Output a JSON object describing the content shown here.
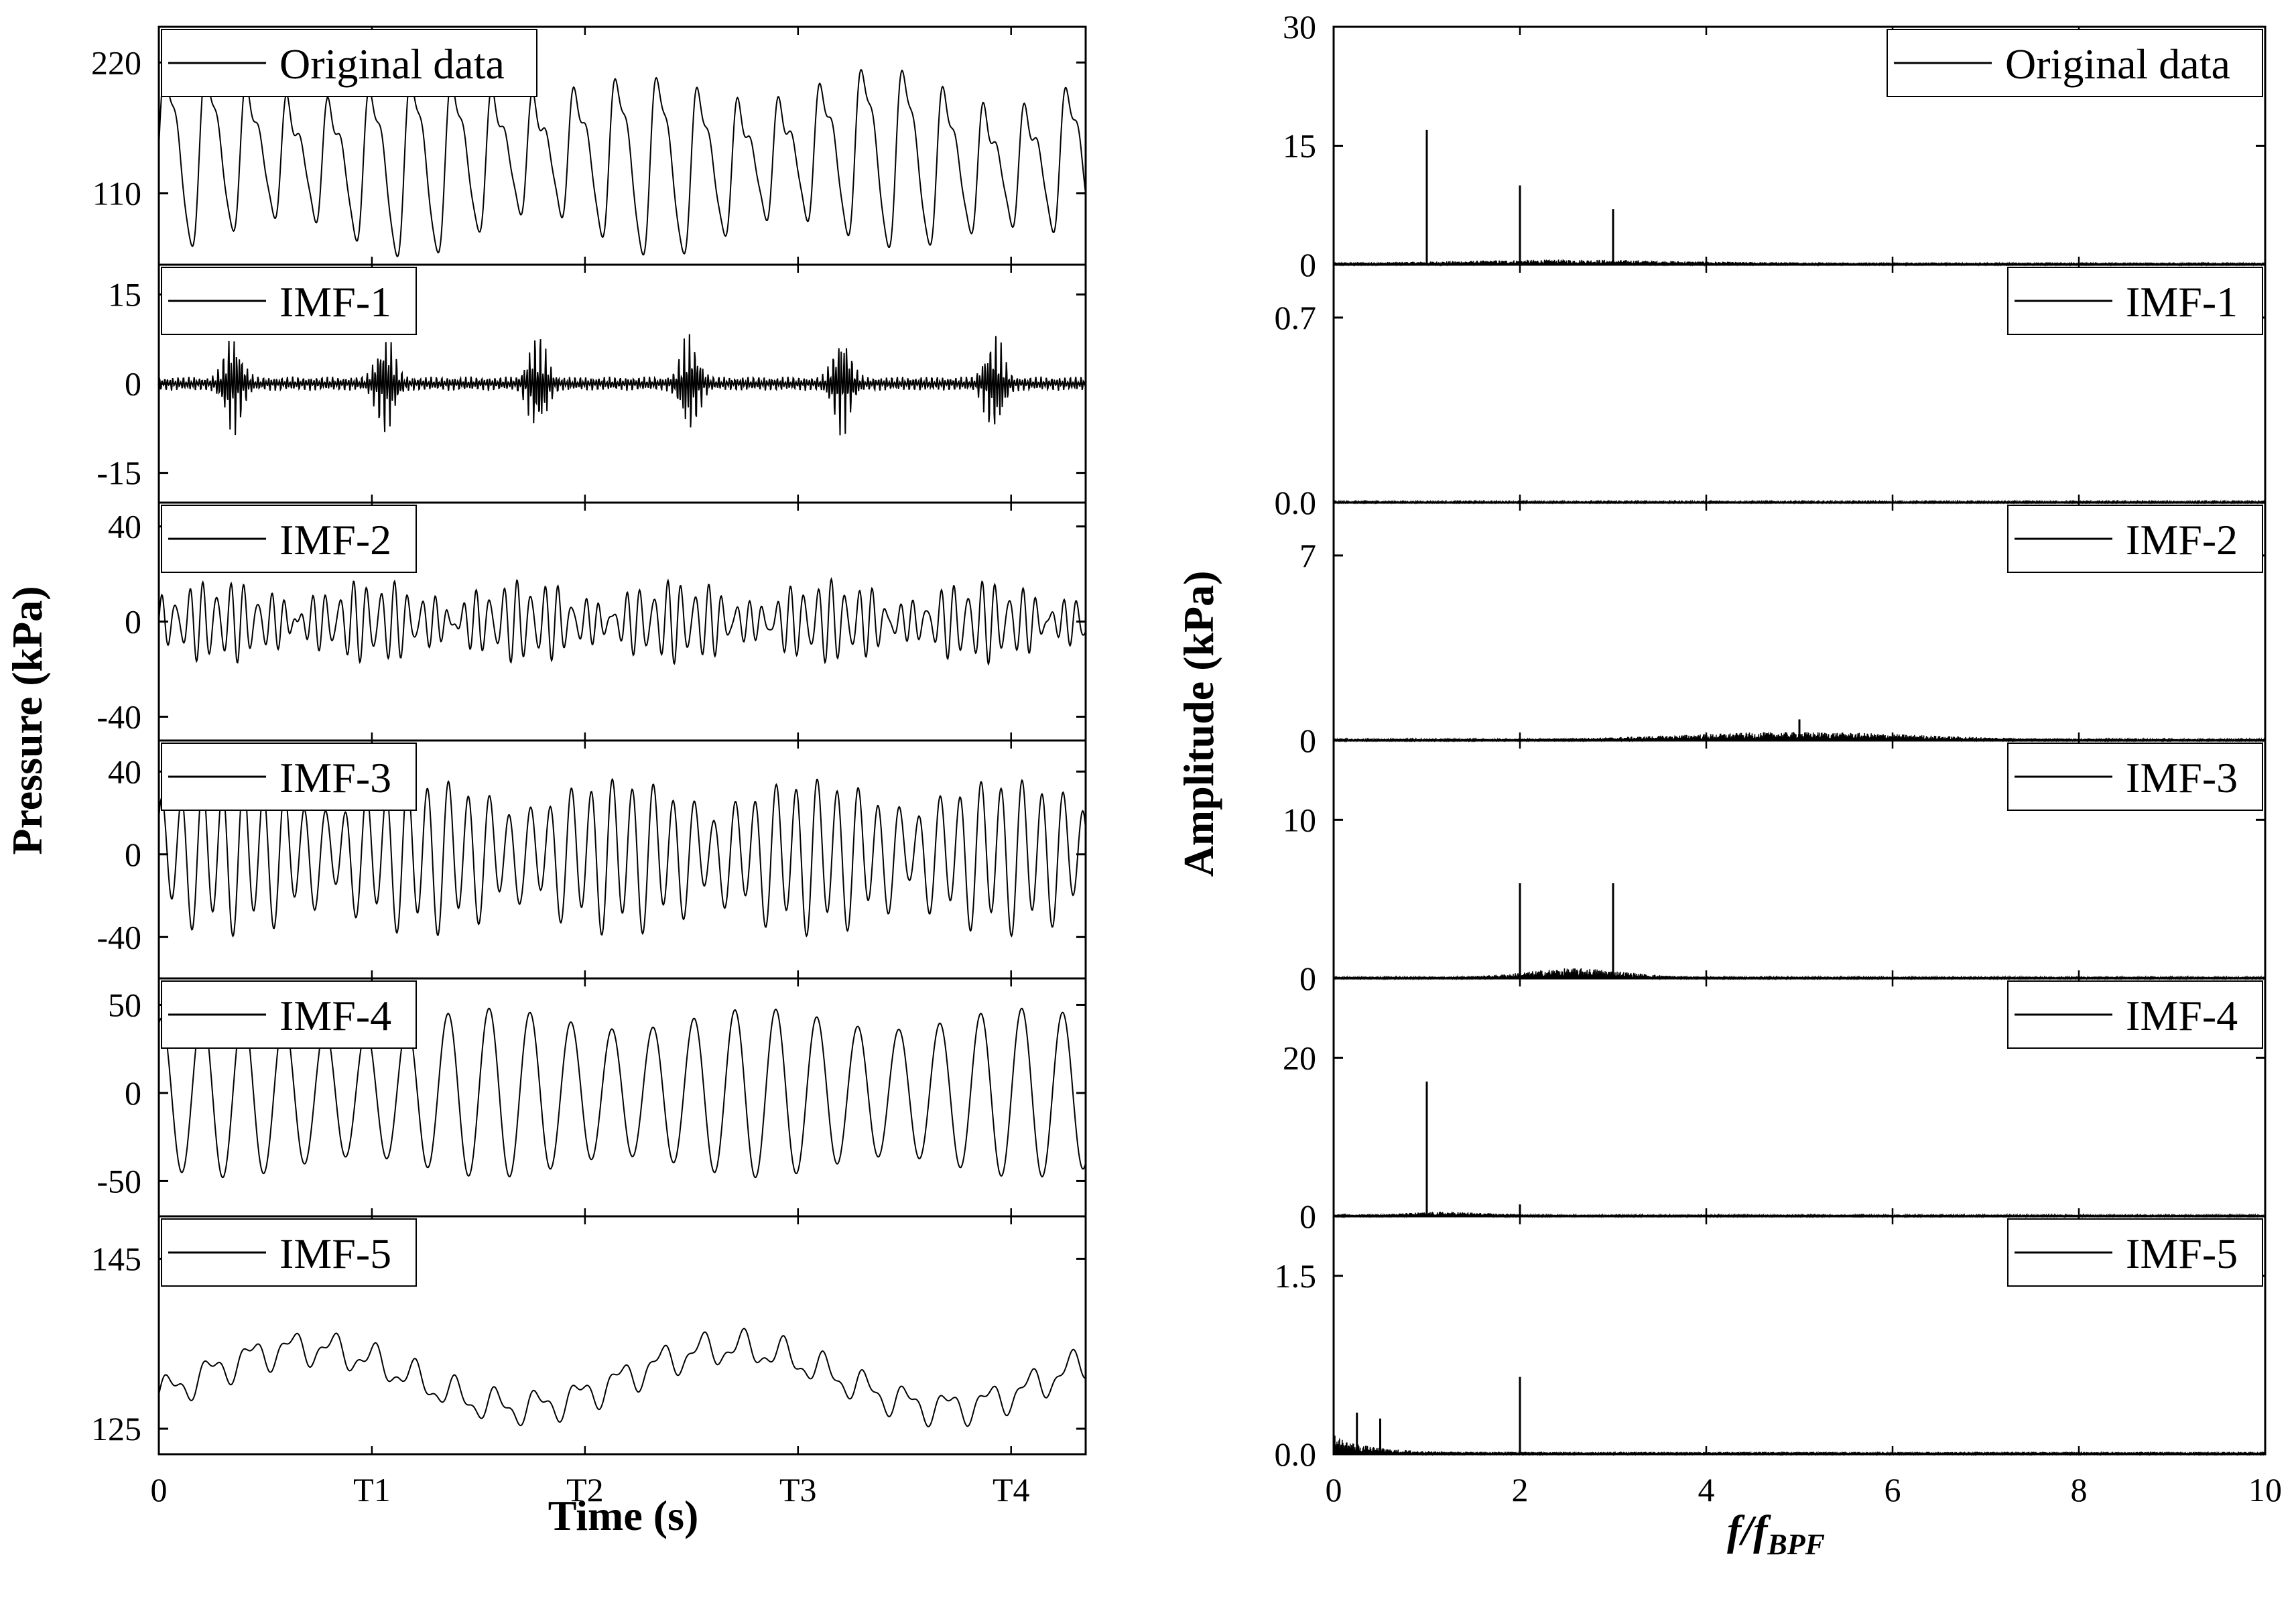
{
  "chart_data": [
    {
      "type": "line",
      "panel": "left",
      "x_axis": {
        "label": "Time (s)",
        "ticks": [
          {
            "v": 0,
            "label": "0"
          },
          {
            "v": 1,
            "label": "T1"
          },
          {
            "v": 2,
            "label": "T2"
          },
          {
            "v": 3,
            "label": "T3"
          },
          {
            "v": 4,
            "label": "T4"
          }
        ],
        "xlim": [
          0,
          4.35
        ]
      },
      "ylabel": "Pressure (kPa)",
      "subplots": [
        {
          "legend": "Original data",
          "ylim": [
            50,
            250
          ],
          "ticks": [
            110,
            220
          ],
          "tick_labels": [
            "110",
            "220"
          ]
        },
        {
          "legend": "IMF-1",
          "ylim": [
            -20,
            20
          ],
          "ticks": [
            -15,
            0,
            15
          ],
          "tick_labels": [
            "-15",
            "0",
            "15"
          ]
        },
        {
          "legend": "IMF-2",
          "ylim": [
            -50,
            50
          ],
          "ticks": [
            -40,
            0,
            40
          ],
          "tick_labels": [
            "-40",
            "0",
            "40"
          ]
        },
        {
          "legend": "IMF-3",
          "ylim": [
            -60,
            55
          ],
          "ticks": [
            -40,
            0,
            40
          ],
          "tick_labels": [
            "-40",
            "0",
            "40"
          ]
        },
        {
          "legend": "IMF-4",
          "ylim": [
            -70,
            65
          ],
          "ticks": [
            -50,
            0,
            50
          ],
          "tick_labels": [
            "-50",
            "0",
            "50"
          ]
        },
        {
          "legend": "IMF-5",
          "ylim": [
            122,
            150
          ],
          "ticks": [
            125,
            145
          ],
          "tick_labels": [
            "125",
            "145"
          ]
        }
      ]
    },
    {
      "type": "line",
      "panel": "right",
      "x_axis": {
        "label": "f/f_BPF",
        "ticks": [
          {
            "v": 0,
            "label": "0"
          },
          {
            "v": 2,
            "label": "2"
          },
          {
            "v": 4,
            "label": "4"
          },
          {
            "v": 6,
            "label": "6"
          },
          {
            "v": 8,
            "label": "8"
          },
          {
            "v": 10,
            "label": "10"
          }
        ],
        "xlim": [
          0,
          10
        ]
      },
      "ylabel": "Amplitude (kPa)",
      "subplots": [
        {
          "legend": "Original data",
          "ylim": [
            0,
            30
          ],
          "ticks": [
            0,
            15,
            30
          ],
          "tick_labels": [
            "0",
            "15",
            "30"
          ],
          "peaks": [
            {
              "x": 1,
              "y": 17
            },
            {
              "x": 2,
              "y": 10
            },
            {
              "x": 3,
              "y": 7
            }
          ]
        },
        {
          "legend": "IMF-1",
          "ylim": [
            0,
            0.9
          ],
          "ticks": [
            0,
            0.7
          ],
          "tick_labels": [
            "0.0",
            "0.7"
          ],
          "peaks": []
        },
        {
          "legend": "IMF-2",
          "ylim": [
            0,
            9
          ],
          "ticks": [
            0,
            7
          ],
          "tick_labels": [
            "0",
            "7"
          ],
          "peaks": [
            {
              "x": 5,
              "y": 0.8
            }
          ]
        },
        {
          "legend": "IMF-3",
          "ylim": [
            0,
            15
          ],
          "ticks": [
            0,
            10
          ],
          "tick_labels": [
            "0",
            "10"
          ],
          "peaks": [
            {
              "x": 2,
              "y": 6
            },
            {
              "x": 3,
              "y": 6
            }
          ]
        },
        {
          "legend": "IMF-4",
          "ylim": [
            0,
            30
          ],
          "ticks": [
            0,
            20
          ],
          "tick_labels": [
            "0",
            "20"
          ],
          "peaks": [
            {
              "x": 1,
              "y": 17
            },
            {
              "x": 2,
              "y": 1.5
            }
          ]
        },
        {
          "legend": "IMF-5",
          "ylim": [
            0,
            2
          ],
          "ticks": [
            0,
            1.5
          ],
          "tick_labels": [
            "0.0",
            "1.5"
          ],
          "peaks": [
            {
              "x": 2,
              "y": 0.65
            },
            {
              "x": 0.25,
              "y": 0.35
            },
            {
              "x": 0.5,
              "y": 0.3
            }
          ]
        }
      ]
    }
  ]
}
